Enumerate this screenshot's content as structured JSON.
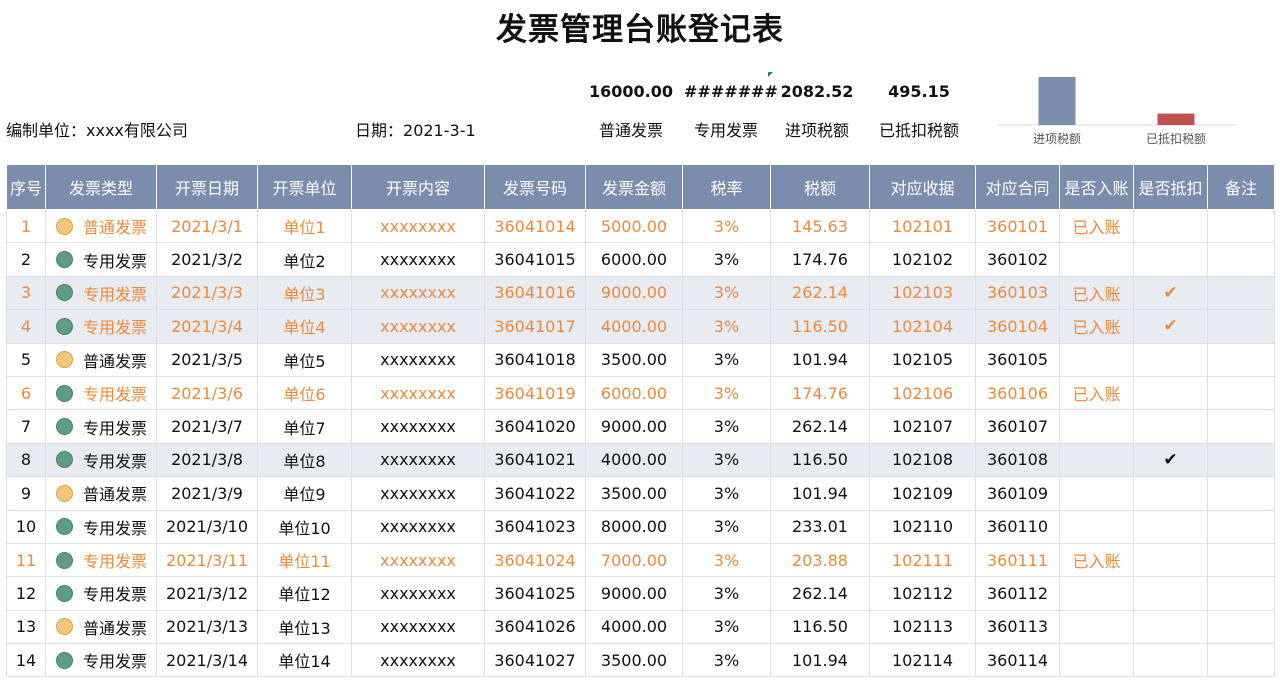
{
  "title": "发票管理台账登记表",
  "info": {
    "company_label": "编制单位：",
    "company": "xxxx有限公司",
    "date_label": "日期：",
    "date": "2021-3-1"
  },
  "summary": [
    {
      "value": "16000.00",
      "label": "普通发票"
    },
    {
      "value": "#######",
      "label": "专用发票"
    },
    {
      "value": "2082.52",
      "label": "进项税额"
    },
    {
      "value": "495.15",
      "label": "已抵扣税额"
    }
  ],
  "chart_data": {
    "type": "bar",
    "categories": [
      "进项税额",
      "已抵扣税额"
    ],
    "values": [
      2082.52,
      495.15
    ],
    "colors": [
      "#7b8cad",
      "#c0504d"
    ],
    "title": "",
    "xlabel": "",
    "ylabel": "",
    "ylim": [
      0,
      2082.52
    ]
  },
  "colors": {
    "header_bg": "#7b8cad",
    "highlight_text": "#ee8a3a",
    "shaded_row": "#e8ebf2",
    "dot_normal": "#f3c77a",
    "dot_special": "#5e9c86"
  },
  "table": {
    "headers": [
      "序号",
      "发票类型",
      "开票日期",
      "开票单位",
      "开票内容",
      "发票号码",
      "发票金额",
      "税率",
      "税额",
      "对应收据",
      "对应合同",
      "是否入账",
      "是否抵扣",
      "备注"
    ],
    "rows": [
      {
        "no": "1",
        "type": "普通发票",
        "date": "2021/3/1",
        "unit": "单位1",
        "content": "xxxxxxxx",
        "number": "36041014",
        "amount": "5000.00",
        "rate": "3%",
        "tax": "145.63",
        "receipt": "102101",
        "contract": "360101",
        "posted": "已入账",
        "deducted": "",
        "remark": ""
      },
      {
        "no": "2",
        "type": "专用发票",
        "date": "2021/3/2",
        "unit": "单位2",
        "content": "xxxxxxxx",
        "number": "36041015",
        "amount": "6000.00",
        "rate": "3%",
        "tax": "174.76",
        "receipt": "102102",
        "contract": "360102",
        "posted": "",
        "deducted": "",
        "remark": ""
      },
      {
        "no": "3",
        "type": "专用发票",
        "date": "2021/3/3",
        "unit": "单位3",
        "content": "xxxxxxxx",
        "number": "36041016",
        "amount": "9000.00",
        "rate": "3%",
        "tax": "262.14",
        "receipt": "102103",
        "contract": "360103",
        "posted": "已入账",
        "deducted": "✔",
        "remark": ""
      },
      {
        "no": "4",
        "type": "专用发票",
        "date": "2021/3/4",
        "unit": "单位4",
        "content": "xxxxxxxx",
        "number": "36041017",
        "amount": "4000.00",
        "rate": "3%",
        "tax": "116.50",
        "receipt": "102104",
        "contract": "360104",
        "posted": "已入账",
        "deducted": "✔",
        "remark": ""
      },
      {
        "no": "5",
        "type": "普通发票",
        "date": "2021/3/5",
        "unit": "单位5",
        "content": "xxxxxxxx",
        "number": "36041018",
        "amount": "3500.00",
        "rate": "3%",
        "tax": "101.94",
        "receipt": "102105",
        "contract": "360105",
        "posted": "",
        "deducted": "",
        "remark": ""
      },
      {
        "no": "6",
        "type": "专用发票",
        "date": "2021/3/6",
        "unit": "单位6",
        "content": "xxxxxxxx",
        "number": "36041019",
        "amount": "6000.00",
        "rate": "3%",
        "tax": "174.76",
        "receipt": "102106",
        "contract": "360106",
        "posted": "已入账",
        "deducted": "",
        "remark": ""
      },
      {
        "no": "7",
        "type": "专用发票",
        "date": "2021/3/7",
        "unit": "单位7",
        "content": "xxxxxxxx",
        "number": "36041020",
        "amount": "9000.00",
        "rate": "3%",
        "tax": "262.14",
        "receipt": "102107",
        "contract": "360107",
        "posted": "",
        "deducted": "",
        "remark": ""
      },
      {
        "no": "8",
        "type": "专用发票",
        "date": "2021/3/8",
        "unit": "单位8",
        "content": "xxxxxxxx",
        "number": "36041021",
        "amount": "4000.00",
        "rate": "3%",
        "tax": "116.50",
        "receipt": "102108",
        "contract": "360108",
        "posted": "",
        "deducted": "✔",
        "remark": ""
      },
      {
        "no": "9",
        "type": "普通发票",
        "date": "2021/3/9",
        "unit": "单位9",
        "content": "xxxxxxxx",
        "number": "36041022",
        "amount": "3500.00",
        "rate": "3%",
        "tax": "101.94",
        "receipt": "102109",
        "contract": "360109",
        "posted": "",
        "deducted": "",
        "remark": ""
      },
      {
        "no": "10",
        "type": "专用发票",
        "date": "2021/3/10",
        "unit": "单位10",
        "content": "xxxxxxxx",
        "number": "36041023",
        "amount": "8000.00",
        "rate": "3%",
        "tax": "233.01",
        "receipt": "102110",
        "contract": "360110",
        "posted": "",
        "deducted": "",
        "remark": ""
      },
      {
        "no": "11",
        "type": "专用发票",
        "date": "2021/3/11",
        "unit": "单位11",
        "content": "xxxxxxxx",
        "number": "36041024",
        "amount": "7000.00",
        "rate": "3%",
        "tax": "203.88",
        "receipt": "102111",
        "contract": "360111",
        "posted": "已入账",
        "deducted": "",
        "remark": ""
      },
      {
        "no": "12",
        "type": "专用发票",
        "date": "2021/3/12",
        "unit": "单位12",
        "content": "xxxxxxxx",
        "number": "36041025",
        "amount": "9000.00",
        "rate": "3%",
        "tax": "262.14",
        "receipt": "102112",
        "contract": "360112",
        "posted": "",
        "deducted": "",
        "remark": ""
      },
      {
        "no": "13",
        "type": "普通发票",
        "date": "2021/3/13",
        "unit": "单位13",
        "content": "xxxxxxxx",
        "number": "36041026",
        "amount": "4000.00",
        "rate": "3%",
        "tax": "116.50",
        "receipt": "102113",
        "contract": "360113",
        "posted": "",
        "deducted": "",
        "remark": ""
      },
      {
        "no": "14",
        "type": "专用发票",
        "date": "2021/3/14",
        "unit": "单位14",
        "content": "xxxxxxxx",
        "number": "36041027",
        "amount": "3500.00",
        "rate": "3%",
        "tax": "101.94",
        "receipt": "102114",
        "contract": "360114",
        "posted": "",
        "deducted": "",
        "remark": ""
      }
    ]
  }
}
